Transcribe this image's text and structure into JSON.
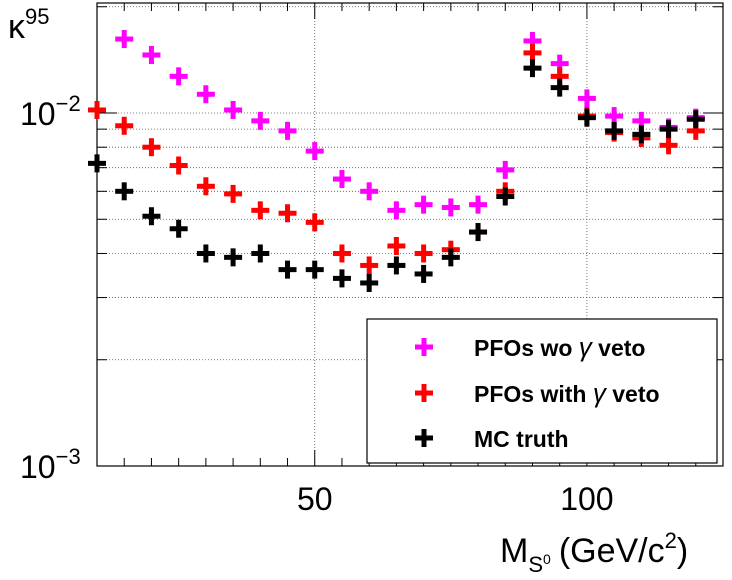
{
  "chart_data": {
    "type": "scatter",
    "title": "",
    "xlabel": {
      "main": "M",
      "sub": "S",
      "sup_of_sub": "0",
      "unit": "(GeV/c",
      "unit_power": "2",
      "unit_close": ")"
    },
    "ylabel": {
      "main": "κ",
      "sub": "95"
    },
    "xlim": [
      10,
      125
    ],
    "ylim": [
      0.001,
      0.02
    ],
    "yscale": "log",
    "x_ticks": [
      "50",
      "100"
    ],
    "y_ticks": [
      {
        "base": "10",
        "exp": "−2"
      },
      {
        "base": "10",
        "exp": "−3"
      }
    ],
    "grid": true,
    "legend_position": "bottom-right",
    "series": [
      {
        "name": "PFOs wo γ veto",
        "name_parts": [
          "PFOs wo ",
          "γ",
          " veto"
        ],
        "color": "#ff00ff",
        "x": [
          15,
          20,
          25,
          30,
          35,
          40,
          45,
          50,
          55,
          60,
          65,
          70,
          75,
          80,
          85,
          90,
          95,
          100,
          105,
          110,
          115,
          120
        ],
        "y": [
          0.0162,
          0.0146,
          0.0127,
          0.0113,
          0.0102,
          0.0095,
          0.0089,
          0.0078,
          0.0065,
          0.006,
          0.0053,
          0.0055,
          0.0054,
          0.0055,
          0.0069,
          0.016,
          0.0138,
          0.011,
          0.0098,
          0.0095,
          0.0091,
          0.0097
        ]
      },
      {
        "name": "PFOs with γ veto",
        "name_parts": [
          "PFOs with ",
          "γ",
          " veto"
        ],
        "color": "#ff0000",
        "x": [
          10,
          15,
          20,
          25,
          30,
          35,
          40,
          45,
          50,
          55,
          60,
          65,
          70,
          75,
          80,
          85,
          90,
          95,
          100,
          105,
          110,
          115,
          120
        ],
        "y": [
          0.0102,
          0.0092,
          0.008,
          0.0071,
          0.0062,
          0.0059,
          0.0053,
          0.0052,
          0.0049,
          0.004,
          0.0037,
          0.0042,
          0.004,
          0.0041,
          0.0046,
          0.006,
          0.0148,
          0.0127,
          0.0098,
          0.0088,
          0.0085,
          0.0081,
          0.0089
        ]
      },
      {
        "name": "MC truth",
        "name_parts": [
          "MC truth"
        ],
        "color": "#000000",
        "x": [
          10,
          15,
          20,
          25,
          30,
          35,
          40,
          45,
          50,
          55,
          60,
          65,
          70,
          75,
          80,
          85,
          90,
          95,
          100,
          105,
          110,
          115,
          120
        ],
        "y": [
          0.0072,
          0.006,
          0.0051,
          0.0047,
          0.004,
          0.0039,
          0.004,
          0.0036,
          0.0036,
          0.0034,
          0.0033,
          0.0037,
          0.0035,
          0.0039,
          0.0046,
          0.0058,
          0.0134,
          0.0118,
          0.0097,
          0.0089,
          0.0087,
          0.009,
          0.0096
        ]
      }
    ]
  }
}
